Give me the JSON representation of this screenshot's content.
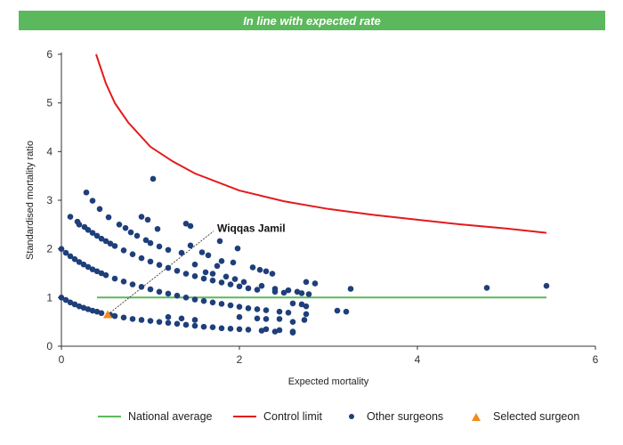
{
  "header": {
    "banner_text": "In line with expected rate",
    "banner_color": "#5cb85c"
  },
  "colors": {
    "national_average": "#5cb85c",
    "control_limit": "#e31a1c",
    "other_surgeons": "#1f3f7a",
    "selected_surgeon": "#f28a1c",
    "axis": "#333333"
  },
  "legend": {
    "national_average": "National average",
    "control_limit": "Control limit",
    "other_surgeons": "Other surgeons",
    "selected_surgeon": "Selected surgeon"
  },
  "chart_data": {
    "type": "scatter",
    "title": "",
    "xlabel": "Expected mortality",
    "ylabel": "Standardised mortality ratio",
    "xlim": [
      0,
      6
    ],
    "ylim": [
      0,
      6
    ],
    "xticks": [
      0,
      2,
      4,
      6
    ],
    "yticks": [
      0,
      1,
      2,
      3,
      4,
      5,
      6
    ],
    "grid": false,
    "legend_position": "bottom",
    "annotation": {
      "label": "Wiqqas Jamil",
      "x": 1.75,
      "y": 2.42
    },
    "series": [
      {
        "name": "National average",
        "kind": "line",
        "points": [
          [
            0.4,
            1.0
          ],
          [
            5.45,
            1.0
          ]
        ]
      },
      {
        "name": "Control limit",
        "kind": "line",
        "points": [
          [
            0.39,
            6.0
          ],
          [
            0.5,
            5.4
          ],
          [
            0.6,
            5.0
          ],
          [
            0.75,
            4.6
          ],
          [
            1.0,
            4.1
          ],
          [
            1.25,
            3.8
          ],
          [
            1.5,
            3.55
          ],
          [
            2.0,
            3.2
          ],
          [
            2.5,
            2.98
          ],
          [
            3.0,
            2.82
          ],
          [
            3.5,
            2.7
          ],
          [
            4.0,
            2.6
          ],
          [
            4.5,
            2.5
          ],
          [
            5.0,
            2.42
          ],
          [
            5.45,
            2.33
          ]
        ]
      },
      {
        "name": "Other surgeons",
        "kind": "scatter",
        "points": [
          [
            0.0,
            1.0
          ],
          [
            0.05,
            0.95
          ],
          [
            0.1,
            0.9
          ],
          [
            0.15,
            0.86
          ],
          [
            0.2,
            0.82
          ],
          [
            0.25,
            0.79
          ],
          [
            0.3,
            0.76
          ],
          [
            0.35,
            0.73
          ],
          [
            0.4,
            0.71
          ],
          [
            0.45,
            0.68
          ],
          [
            0.55,
            0.64
          ],
          [
            0.6,
            0.62
          ],
          [
            0.7,
            0.59
          ],
          [
            0.8,
            0.56
          ],
          [
            0.9,
            0.54
          ],
          [
            1.0,
            0.52
          ],
          [
            1.1,
            0.5
          ],
          [
            1.2,
            0.48
          ],
          [
            1.3,
            0.46
          ],
          [
            1.4,
            0.44
          ],
          [
            1.5,
            0.42
          ],
          [
            1.6,
            0.4
          ],
          [
            1.7,
            0.39
          ],
          [
            1.8,
            0.37
          ],
          [
            1.9,
            0.36
          ],
          [
            2.0,
            0.35
          ],
          [
            2.1,
            0.34
          ],
          [
            2.25,
            0.32
          ],
          [
            2.4,
            0.3
          ],
          [
            2.6,
            0.28
          ],
          [
            0.0,
            2.0
          ],
          [
            0.05,
            1.92
          ],
          [
            0.1,
            1.85
          ],
          [
            0.15,
            1.79
          ],
          [
            0.2,
            1.73
          ],
          [
            0.25,
            1.68
          ],
          [
            0.3,
            1.63
          ],
          [
            0.35,
            1.58
          ],
          [
            0.4,
            1.54
          ],
          [
            0.45,
            1.5
          ],
          [
            0.5,
            1.46
          ],
          [
            0.6,
            1.39
          ],
          [
            0.7,
            1.33
          ],
          [
            0.8,
            1.27
          ],
          [
            0.9,
            1.22
          ],
          [
            1.0,
            1.17
          ],
          [
            1.1,
            1.12
          ],
          [
            1.2,
            1.08
          ],
          [
            1.3,
            1.04
          ],
          [
            1.4,
            1.0
          ],
          [
            1.5,
            0.96
          ],
          [
            1.6,
            0.93
          ],
          [
            1.7,
            0.9
          ],
          [
            1.8,
            0.87
          ],
          [
            1.9,
            0.84
          ],
          [
            2.0,
            0.81
          ],
          [
            2.1,
            0.78
          ],
          [
            2.2,
            0.76
          ],
          [
            2.3,
            0.74
          ],
          [
            2.45,
            0.71
          ],
          [
            2.55,
            0.69
          ],
          [
            2.75,
            0.66
          ],
          [
            0.1,
            2.66
          ],
          [
            0.18,
            2.56
          ],
          [
            0.2,
            2.5
          ],
          [
            0.26,
            2.45
          ],
          [
            0.3,
            2.39
          ],
          [
            0.35,
            2.33
          ],
          [
            0.4,
            2.27
          ],
          [
            0.45,
            2.21
          ],
          [
            0.5,
            2.16
          ],
          [
            0.55,
            2.11
          ],
          [
            0.6,
            2.06
          ],
          [
            0.7,
            1.97
          ],
          [
            0.8,
            1.89
          ],
          [
            0.9,
            1.81
          ],
          [
            1.0,
            1.74
          ],
          [
            1.1,
            1.67
          ],
          [
            1.2,
            1.61
          ],
          [
            1.3,
            1.55
          ],
          [
            1.4,
            1.49
          ],
          [
            1.5,
            1.44
          ],
          [
            1.6,
            1.39
          ],
          [
            1.7,
            1.35
          ],
          [
            1.8,
            1.31
          ],
          [
            1.9,
            1.27
          ],
          [
            2.0,
            1.23
          ],
          [
            2.1,
            1.19
          ],
          [
            2.2,
            1.16
          ],
          [
            2.4,
            1.12
          ],
          [
            2.5,
            1.1
          ],
          [
            2.7,
            1.09
          ],
          [
            2.78,
            1.07
          ],
          [
            0.28,
            3.16
          ],
          [
            0.35,
            2.99
          ],
          [
            0.43,
            2.82
          ],
          [
            0.53,
            2.65
          ],
          [
            0.65,
            2.5
          ],
          [
            0.72,
            2.43
          ],
          [
            0.78,
            2.34
          ],
          [
            0.85,
            2.27
          ],
          [
            0.95,
            2.18
          ],
          [
            1.0,
            2.12
          ],
          [
            1.1,
            2.05
          ],
          [
            1.2,
            1.98
          ],
          [
            1.35,
            1.92
          ],
          [
            0.9,
            2.66
          ],
          [
            0.97,
            2.6
          ],
          [
            1.08,
            2.41
          ],
          [
            1.4,
            2.52
          ],
          [
            1.45,
            2.47
          ],
          [
            1.45,
            2.07
          ],
          [
            1.58,
            1.93
          ],
          [
            1.65,
            1.87
          ],
          [
            1.8,
            1.75
          ],
          [
            1.93,
            1.72
          ],
          [
            1.78,
            2.16
          ],
          [
            1.98,
            2.01
          ],
          [
            1.5,
            1.68
          ],
          [
            1.62,
            1.52
          ],
          [
            1.7,
            1.49
          ],
          [
            1.85,
            1.43
          ],
          [
            1.95,
            1.38
          ],
          [
            2.05,
            1.32
          ],
          [
            2.15,
            1.62
          ],
          [
            2.23,
            1.57
          ],
          [
            2.3,
            1.54
          ],
          [
            2.37,
            1.49
          ],
          [
            2.25,
            1.24
          ],
          [
            2.4,
            1.18
          ],
          [
            2.55,
            1.15
          ],
          [
            2.65,
            1.12
          ],
          [
            1.75,
            1.65
          ],
          [
            1.03,
            3.44
          ],
          [
            2.75,
            1.32
          ],
          [
            2.85,
            1.29
          ],
          [
            3.25,
            1.18
          ],
          [
            2.6,
            0.88
          ],
          [
            2.7,
            0.86
          ],
          [
            2.75,
            0.82
          ],
          [
            2.73,
            0.54
          ],
          [
            3.1,
            0.73
          ],
          [
            3.2,
            0.71
          ],
          [
            2.0,
            0.6
          ],
          [
            2.2,
            0.57
          ],
          [
            2.3,
            0.56
          ],
          [
            2.45,
            0.56
          ],
          [
            2.6,
            0.5
          ],
          [
            2.3,
            0.35
          ],
          [
            2.45,
            0.33
          ],
          [
            2.6,
            0.3
          ],
          [
            1.2,
            0.6
          ],
          [
            1.35,
            0.57
          ],
          [
            1.5,
            0.54
          ],
          [
            4.78,
            1.2
          ],
          [
            5.45,
            1.24
          ]
        ]
      },
      {
        "name": "Selected surgeon",
        "kind": "scatter",
        "points": [
          [
            0.52,
            0.65
          ]
        ]
      }
    ]
  }
}
